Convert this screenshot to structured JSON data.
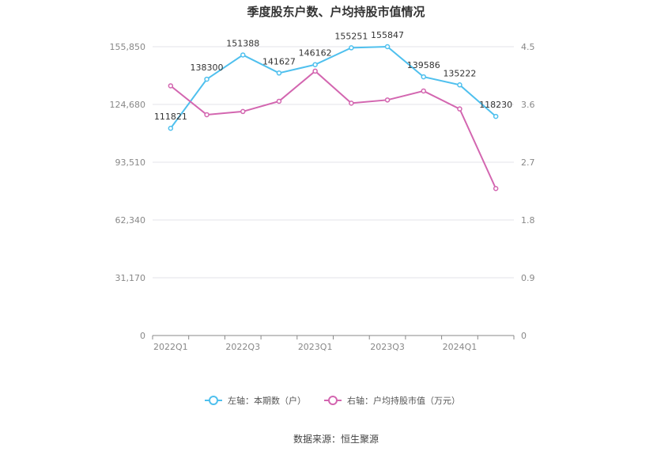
{
  "chart_data": {
    "type": "line",
    "title": "季度股东户数、户均持股市值情况",
    "x": [
      "2022Q1",
      "2022Q2",
      "2022Q3",
      "2022Q4",
      "2023Q1",
      "2023Q2",
      "2023Q3",
      "2023Q4",
      "2024Q1",
      "2024Q2"
    ],
    "x_tick_labels": [
      "2022Q1",
      "",
      "2022Q3",
      "",
      "2023Q1",
      "",
      "2023Q3",
      "",
      "2024Q1",
      ""
    ],
    "y_left": {
      "lim": [
        0,
        155850
      ],
      "ticks": [
        0,
        31170,
        62340,
        93510,
        124680,
        155850
      ],
      "tick_labels": [
        "0",
        "31,170",
        "62,340",
        "93,510",
        "124,680",
        "155,850"
      ]
    },
    "y_right": {
      "lim": [
        0,
        4.5
      ],
      "ticks": [
        0,
        0.9,
        1.8,
        2.7,
        3.6,
        4.5
      ],
      "tick_labels": [
        "0",
        "0.9",
        "1.8",
        "2.7",
        "3.6",
        "4.5"
      ]
    },
    "series": [
      {
        "name": "左轴：本期数（户）",
        "axis": "left",
        "color": "#4fc0ee",
        "values": [
          111821,
          138300,
          151388,
          141627,
          146162,
          155251,
          155847,
          139586,
          135222,
          118230
        ],
        "labels": [
          "111821",
          "138300",
          "151388",
          "141627",
          "146162",
          "155251",
          "155847",
          "139586",
          "135222",
          "118230"
        ]
      },
      {
        "name": "右轴：户均持股市值（万元）",
        "axis": "right",
        "color": "#d366b0",
        "values": [
          3.89,
          3.44,
          3.49,
          3.65,
          4.12,
          3.62,
          3.67,
          3.81,
          3.53,
          2.29
        ]
      }
    ],
    "grid": true,
    "legend_position": "bottom-center",
    "source": "数据来源：恒生聚源"
  }
}
